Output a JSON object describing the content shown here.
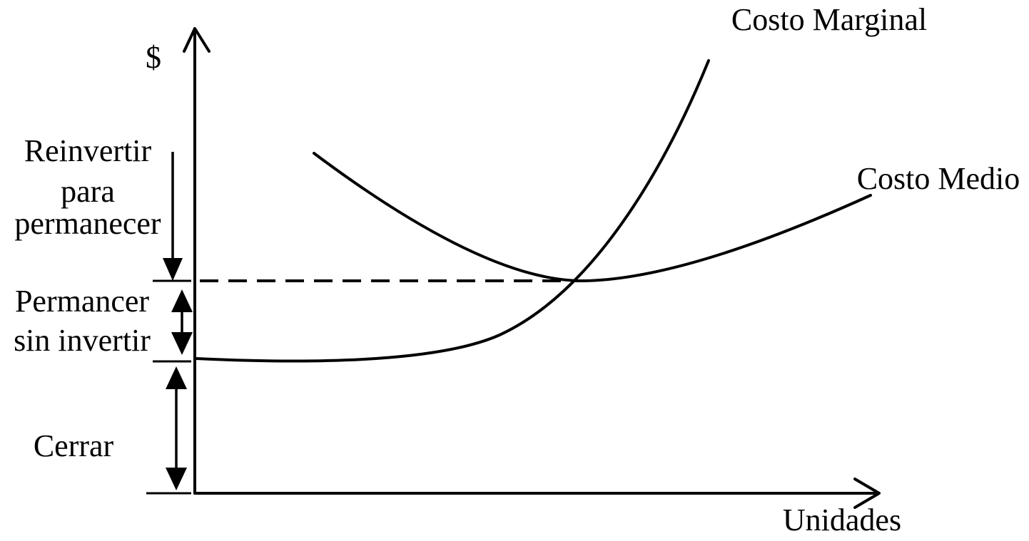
{
  "axes": {
    "y_label": "$",
    "x_label": "Unidades"
  },
  "curves": {
    "marginal_cost": "Costo Marginal",
    "average_cost": "Costo Medio"
  },
  "zones": {
    "reinvest": [
      "Reinvertir",
      "para",
      "permanecer"
    ],
    "stay": [
      "Permancer",
      "sin invertir"
    ],
    "close": [
      "Cerrar"
    ]
  },
  "colors": {
    "ink": "#000000",
    "background": "#ffffff"
  }
}
